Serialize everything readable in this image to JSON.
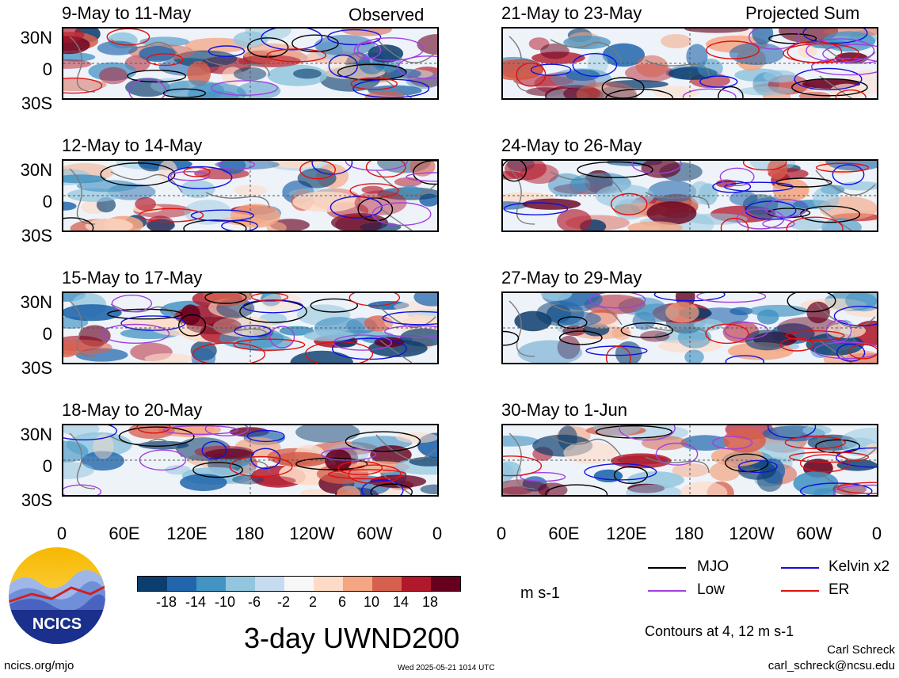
{
  "header": {
    "observed_label": "Observed",
    "projected_label": "Projected Sum"
  },
  "panels": [
    {
      "title": "9-May to 11-May"
    },
    {
      "title": "12-May to 14-May"
    },
    {
      "title": "15-May to 17-May"
    },
    {
      "title": "18-May to 20-May"
    },
    {
      "title": "21-May to 23-May"
    },
    {
      "title": "24-May to 26-May"
    },
    {
      "title": "27-May to 29-May"
    },
    {
      "title": "30-May to 1-Jun"
    }
  ],
  "lat_labels": [
    "30N",
    "0",
    "30S"
  ],
  "lon_labels": [
    "0",
    "60E",
    "120E",
    "180",
    "120W",
    "60W",
    "0"
  ],
  "colorbar": {
    "colors": [
      "#0b3d6e",
      "#2166ac",
      "#4393c3",
      "#92c5de",
      "#c6dbef",
      "#f7f7f7",
      "#fddbc7",
      "#f4a582",
      "#d6604d",
      "#b2182b",
      "#67001f"
    ],
    "ticks": [
      "-18",
      "-14",
      "-10",
      "-6",
      "-2",
      "2",
      "6",
      "10",
      "14",
      "18"
    ],
    "units": "m s-1"
  },
  "title": "3-day UWND200",
  "legend": {
    "items": [
      {
        "label": "MJO",
        "color": "#000000"
      },
      {
        "label": "Kelvin x2",
        "color": "#1010e0"
      },
      {
        "label": "Low",
        "color": "#a040e0"
      },
      {
        "label": "ER",
        "color": "#e01010"
      }
    ],
    "contours_note": "Contours at 4, 12 m s-1"
  },
  "footer": {
    "author": "Carl Schreck",
    "email": "carl_schreck@ncsu.edu",
    "url": "ncics.org/mjo",
    "timestamp": "Wed 2025-05-21 1014 UTC",
    "logo_text": "NCICS"
  }
}
